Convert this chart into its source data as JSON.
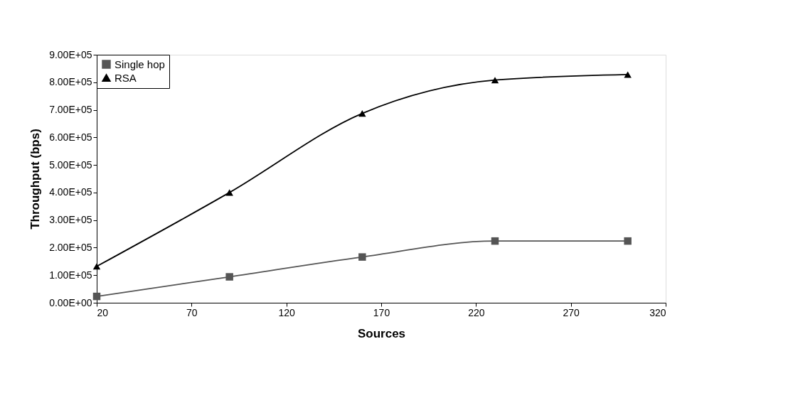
{
  "chart_data": {
    "type": "line",
    "xlabel": "Sources",
    "ylabel": "Throughput (bps)",
    "x": [
      20,
      90,
      160,
      230,
      300
    ],
    "series": [
      {
        "name": "Single hop",
        "color": "#555555",
        "marker": "square",
        "values": [
          23000,
          94000,
          166000,
          224000,
          224000
        ]
      },
      {
        "name": "RSA",
        "color": "#000000",
        "marker": "triangle",
        "values": [
          132000,
          400000,
          687000,
          808000,
          828000
        ]
      }
    ],
    "xlim": [
      20,
      320
    ],
    "xticks": [
      20,
      70,
      120,
      170,
      220,
      270,
      320
    ],
    "ylim": [
      0,
      900000
    ],
    "yticks": [
      {
        "value": 0,
        "label": "0.00E+00"
      },
      {
        "value": 100000,
        "label": "1.00E+05"
      },
      {
        "value": 200000,
        "label": "2.00E+05"
      },
      {
        "value": 300000,
        "label": "3.00E+05"
      },
      {
        "value": 400000,
        "label": "4.00E+05"
      },
      {
        "value": 500000,
        "label": "5.00E+05"
      },
      {
        "value": 600000,
        "label": "6.00E+05"
      },
      {
        "value": 700000,
        "label": "7.00E+05"
      },
      {
        "value": 800000,
        "label": "8.00E+05"
      },
      {
        "value": 900000,
        "label": "9.00E+05"
      }
    ],
    "grid": false,
    "legend": "top left",
    "line_style": "solid"
  }
}
